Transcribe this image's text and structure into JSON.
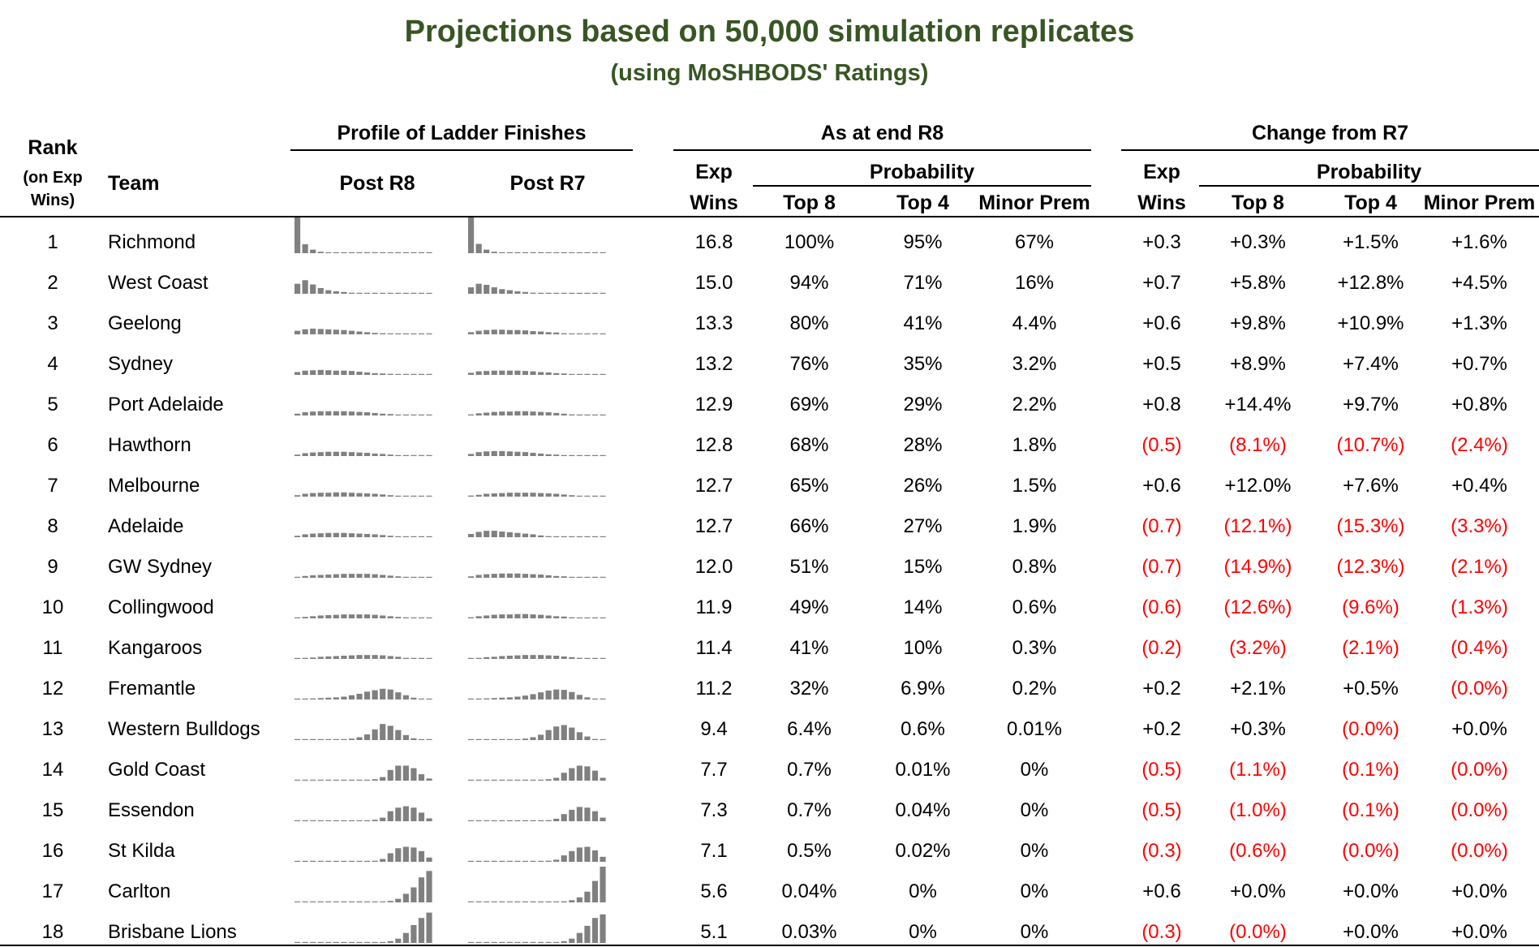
{
  "title": "Projections based on 50,000 simulation replicates",
  "subtitle": "(using MoSHBODS' Ratings)",
  "headers": {
    "rank_line1": "Rank",
    "rank_line2": "(on Exp",
    "rank_line3": "Wins)",
    "team": "Team",
    "profile": "Profile of Ladder Finishes",
    "post_r8": "Post R8",
    "post_r7": "Post R7",
    "as_at": "As at end R8",
    "change": "Change from R7",
    "exp": "Exp",
    "wins": "Wins",
    "probability": "Probability",
    "top8": "Top 8",
    "top4": "Top 4",
    "minor_prem": "Minor Prem"
  },
  "colors": {
    "title": "#375623",
    "negative": "#ff0000",
    "bar": "#808080"
  },
  "chart_data": {
    "type": "table",
    "columns": [
      "Rank",
      "Team",
      "Exp Wins",
      "Top 8",
      "Top 4",
      "Minor Prem",
      "Chg Exp Wins",
      "Chg Top 8",
      "Chg Top 4",
      "Chg Minor Prem"
    ],
    "rows": [
      {
        "rank": "1",
        "team": "Richmond",
        "exp": "16.8",
        "top8": "100%",
        "top4": "95%",
        "mp": "67%",
        "c_exp": "+0.3",
        "c_top8": "+0.3%",
        "c_top4": "+1.5%",
        "c_mp": "+1.6%",
        "r8": [
          100,
          25,
          10,
          4,
          2,
          1,
          1,
          0,
          0,
          0,
          0,
          0,
          0,
          0,
          0,
          0,
          0,
          0
        ],
        "r7": [
          100,
          26,
          10,
          4,
          2,
          1,
          1,
          0,
          0,
          0,
          0,
          0,
          0,
          0,
          0,
          0,
          0,
          0
        ]
      },
      {
        "rank": "2",
        "team": "West Coast",
        "exp": "15.0",
        "top8": "94%",
        "top4": "71%",
        "mp": "16%",
        "c_exp": "+0.7",
        "c_top8": "+5.8%",
        "c_top4": "+12.8%",
        "c_mp": "+4.5%",
        "r8": [
          28,
          38,
          26,
          16,
          10,
          7,
          5,
          3,
          2,
          1,
          1,
          0,
          0,
          0,
          0,
          0,
          0,
          0
        ],
        "r7": [
          18,
          28,
          25,
          18,
          13,
          10,
          7,
          5,
          3,
          2,
          1,
          1,
          0,
          0,
          0,
          0,
          0,
          0
        ]
      },
      {
        "rank": "3",
        "team": "Geelong",
        "exp": "13.3",
        "top8": "80%",
        "top4": "41%",
        "mp": "4.4%",
        "c_exp": "+0.6",
        "c_top8": "+9.8%",
        "c_top4": "+10.9%",
        "c_mp": "+1.3%",
        "r8": [
          10,
          14,
          16,
          15,
          14,
          13,
          12,
          10,
          8,
          6,
          4,
          3,
          2,
          1,
          0,
          0,
          0,
          0
        ],
        "r7": [
          6,
          10,
          12,
          13,
          13,
          12,
          12,
          11,
          9,
          8,
          6,
          5,
          3,
          2,
          1,
          0,
          0,
          0
        ]
      },
      {
        "rank": "4",
        "team": "Sydney",
        "exp": "13.2",
        "top8": "76%",
        "top4": "35%",
        "mp": "3.2%",
        "c_exp": "+0.5",
        "c_top8": "+8.9%",
        "c_top4": "+7.4%",
        "c_mp": "+0.7%",
        "r8": [
          8,
          12,
          13,
          14,
          13,
          12,
          12,
          11,
          9,
          7,
          5,
          4,
          3,
          2,
          1,
          0,
          0,
          0
        ],
        "r7": [
          6,
          10,
          11,
          12,
          12,
          12,
          12,
          11,
          10,
          8,
          7,
          5,
          4,
          2,
          1,
          0,
          0,
          0
        ]
      },
      {
        "rank": "5",
        "team": "Port Adelaide",
        "exp": "12.9",
        "top8": "69%",
        "top4": "29%",
        "mp": "2.2%",
        "c_exp": "+0.8",
        "c_top8": "+14.4%",
        "c_top4": "+9.7%",
        "c_mp": "+0.8%",
        "r8": [
          5,
          9,
          11,
          12,
          12,
          12,
          12,
          11,
          10,
          9,
          7,
          5,
          4,
          2,
          1,
          0,
          0,
          0
        ],
        "r7": [
          3,
          6,
          8,
          10,
          11,
          11,
          12,
          12,
          11,
          10,
          9,
          7,
          5,
          3,
          2,
          0,
          0,
          0
        ]
      },
      {
        "rank": "6",
        "team": "Hawthorn",
        "exp": "12.8",
        "top8": "68%",
        "top4": "28%",
        "mp": "1.8%",
        "c_exp": "(0.5)",
        "c_top8": "(8.1%)",
        "c_top4": "(10.7%)",
        "c_mp": "(2.4%)",
        "r8": [
          4,
          8,
          10,
          11,
          12,
          12,
          12,
          11,
          10,
          9,
          7,
          6,
          4,
          2,
          1,
          0,
          0,
          0
        ],
        "r7": [
          6,
          11,
          13,
          14,
          14,
          13,
          12,
          11,
          9,
          7,
          5,
          4,
          2,
          1,
          0,
          0,
          0,
          0
        ]
      },
      {
        "rank": "7",
        "team": "Melbourne",
        "exp": "12.7",
        "top8": "65%",
        "top4": "26%",
        "mp": "1.5%",
        "c_exp": "+0.6",
        "c_top8": "+12.0%",
        "c_top4": "+7.6%",
        "c_mp": "+0.4%",
        "r8": [
          4,
          8,
          10,
          11,
          11,
          12,
          12,
          11,
          10,
          9,
          8,
          6,
          4,
          2,
          1,
          0,
          0,
          0
        ],
        "r7": [
          3,
          5,
          8,
          9,
          10,
          11,
          11,
          11,
          11,
          10,
          9,
          8,
          6,
          4,
          2,
          1,
          0,
          0
        ]
      },
      {
        "rank": "8",
        "team": "Adelaide",
        "exp": "12.7",
        "top8": "66%",
        "top4": "27%",
        "mp": "1.9%",
        "c_exp": "(0.7)",
        "c_top8": "(12.1%)",
        "c_top4": "(15.3%)",
        "c_mp": "(3.3%)",
        "r8": [
          4,
          8,
          10,
          11,
          12,
          12,
          12,
          11,
          10,
          9,
          8,
          6,
          4,
          2,
          1,
          0,
          0,
          0
        ],
        "r7": [
          9,
          15,
          18,
          18,
          16,
          14,
          12,
          10,
          8,
          5,
          3,
          2,
          1,
          0,
          0,
          0,
          0,
          0
        ]
      },
      {
        "rank": "9",
        "team": "GW Sydney",
        "exp": "12.0",
        "top8": "51%",
        "top4": "15%",
        "mp": "0.8%",
        "c_exp": "(0.7)",
        "c_top8": "(14.9%)",
        "c_top4": "(12.3%)",
        "c_mp": "(2.1%)",
        "r8": [
          2,
          5,
          7,
          8,
          9,
          10,
          11,
          11,
          11,
          11,
          10,
          8,
          6,
          4,
          2,
          1,
          0,
          0
        ],
        "r7": [
          4,
          8,
          10,
          11,
          12,
          12,
          12,
          11,
          10,
          9,
          7,
          5,
          4,
          2,
          1,
          0,
          0,
          0
        ]
      },
      {
        "rank": "10",
        "team": "Collingwood",
        "exp": "11.9",
        "top8": "49%",
        "top4": "14%",
        "mp": "0.6%",
        "c_exp": "(0.6)",
        "c_top8": "(12.6%)",
        "c_top4": "(9.6%)",
        "c_mp": "(1.3%)",
        "r8": [
          2,
          4,
          6,
          8,
          9,
          10,
          11,
          11,
          11,
          11,
          10,
          8,
          6,
          4,
          2,
          1,
          0,
          0
        ],
        "r7": [
          3,
          6,
          8,
          10,
          11,
          11,
          12,
          12,
          11,
          10,
          8,
          6,
          5,
          3,
          1,
          0,
          0,
          0
        ]
      },
      {
        "rank": "11",
        "team": "Kangaroos",
        "exp": "11.4",
        "top8": "41%",
        "top4": "10%",
        "mp": "0.3%",
        "c_exp": "(0.2)",
        "c_top8": "(3.2%)",
        "c_top4": "(2.1%)",
        "c_mp": "(0.4%)",
        "r8": [
          1,
          3,
          4,
          6,
          7,
          8,
          9,
          10,
          11,
          11,
          11,
          10,
          8,
          6,
          3,
          1,
          0,
          0
        ],
        "r7": [
          1,
          3,
          5,
          6,
          8,
          9,
          10,
          11,
          11,
          11,
          10,
          9,
          7,
          5,
          3,
          1,
          0,
          0
        ]
      },
      {
        "rank": "12",
        "team": "Fremantle",
        "exp": "11.2",
        "top8": "32%",
        "top4": "6.9%",
        "mp": "0.2%",
        "c_exp": "+0.2",
        "c_top8": "+2.1%",
        "c_top4": "+0.5%",
        "c_mp": "(0.0%)",
        "r8": [
          1,
          2,
          3,
          4,
          5,
          6,
          8,
          12,
          16,
          22,
          26,
          30,
          28,
          20,
          12,
          5,
          1,
          0
        ],
        "r7": [
          1,
          2,
          3,
          4,
          5,
          6,
          8,
          11,
          15,
          20,
          25,
          28,
          27,
          21,
          13,
          6,
          2,
          0
        ]
      },
      {
        "rank": "13",
        "team": "Western Bulldogs",
        "exp": "9.4",
        "top8": "6.4%",
        "top4": "0.6%",
        "mp": "0.01%",
        "c_exp": "+0.2",
        "c_top8": "+0.3%",
        "c_top4": "(0.0%)",
        "c_mp": "+0.0%",
        "r8": [
          0,
          0,
          0,
          0,
          1,
          1,
          2,
          4,
          8,
          16,
          30,
          45,
          40,
          28,
          14,
          5,
          2,
          0
        ],
        "r7": [
          0,
          0,
          0,
          0,
          1,
          1,
          2,
          4,
          8,
          15,
          28,
          38,
          42,
          35,
          22,
          10,
          3,
          1
        ]
      },
      {
        "rank": "14",
        "team": "Gold Coast",
        "exp": "7.7",
        "top8": "0.7%",
        "top4": "0.01%",
        "mp": "0%",
        "c_exp": "(0.5)",
        "c_top8": "(1.1%)",
        "c_top4": "(0.1%)",
        "c_mp": "(0.0%)",
        "r8": [
          0,
          0,
          0,
          0,
          0,
          0,
          0,
          1,
          1,
          2,
          4,
          10,
          30,
          42,
          42,
          35,
          18,
          6
        ],
        "r7": [
          0,
          0,
          0,
          0,
          0,
          0,
          0,
          1,
          1,
          2,
          4,
          8,
          22,
          35,
          42,
          40,
          28,
          8
        ]
      },
      {
        "rank": "15",
        "team": "Essendon",
        "exp": "7.3",
        "top8": "0.7%",
        "top4": "0.04%",
        "mp": "0%",
        "c_exp": "(0.5)",
        "c_top8": "(1.0%)",
        "c_top4": "(0.1%)",
        "c_mp": "(0.0%)",
        "r8": [
          0,
          0,
          0,
          0,
          0,
          0,
          0,
          1,
          1,
          2,
          4,
          10,
          28,
          38,
          42,
          38,
          24,
          8
        ],
        "r7": [
          0,
          0,
          0,
          0,
          0,
          0,
          0,
          1,
          1,
          2,
          3,
          7,
          20,
          32,
          40,
          38,
          28,
          10
        ]
      },
      {
        "rank": "16",
        "team": "St Kilda",
        "exp": "7.1",
        "top8": "0.5%",
        "top4": "0.02%",
        "mp": "0%",
        "c_exp": "(0.3)",
        "c_top8": "(0.6%)",
        "c_top4": "(0.0%)",
        "c_mp": "(0.0%)",
        "r8": [
          0,
          0,
          0,
          0,
          0,
          0,
          0,
          1,
          1,
          1,
          3,
          8,
          24,
          38,
          42,
          40,
          30,
          12
        ],
        "r7": [
          0,
          0,
          0,
          0,
          0,
          0,
          0,
          1,
          1,
          1,
          3,
          6,
          18,
          30,
          40,
          42,
          32,
          14
        ]
      },
      {
        "rank": "17",
        "team": "Carlton",
        "exp": "5.6",
        "top8": "0.04%",
        "top4": "0%",
        "mp": "0%",
        "c_exp": "+0.6",
        "c_top8": "+0.0%",
        "c_top4": "+0.0%",
        "c_mp": "+0.0%",
        "r8": [
          0,
          0,
          0,
          0,
          0,
          0,
          0,
          0,
          0,
          0,
          1,
          2,
          4,
          10,
          24,
          42,
          70,
          88
        ],
        "r7": [
          0,
          0,
          0,
          0,
          0,
          0,
          0,
          0,
          0,
          0,
          1,
          1,
          3,
          6,
          14,
          30,
          60,
          100
        ]
      },
      {
        "rank": "18",
        "team": "Brisbane Lions",
        "exp": "5.1",
        "top8": "0.03%",
        "top4": "0%",
        "mp": "0%",
        "c_exp": "(0.3)",
        "c_top8": "(0.0%)",
        "c_top4": "+0.0%",
        "c_mp": "+0.0%",
        "r8": [
          0,
          0,
          0,
          0,
          0,
          0,
          0,
          0,
          0,
          0,
          1,
          2,
          5,
          12,
          28,
          50,
          70,
          85
        ],
        "r7": [
          0,
          0,
          0,
          0,
          0,
          0,
          0,
          0,
          0,
          0,
          1,
          2,
          5,
          12,
          28,
          48,
          70,
          80
        ]
      }
    ]
  }
}
